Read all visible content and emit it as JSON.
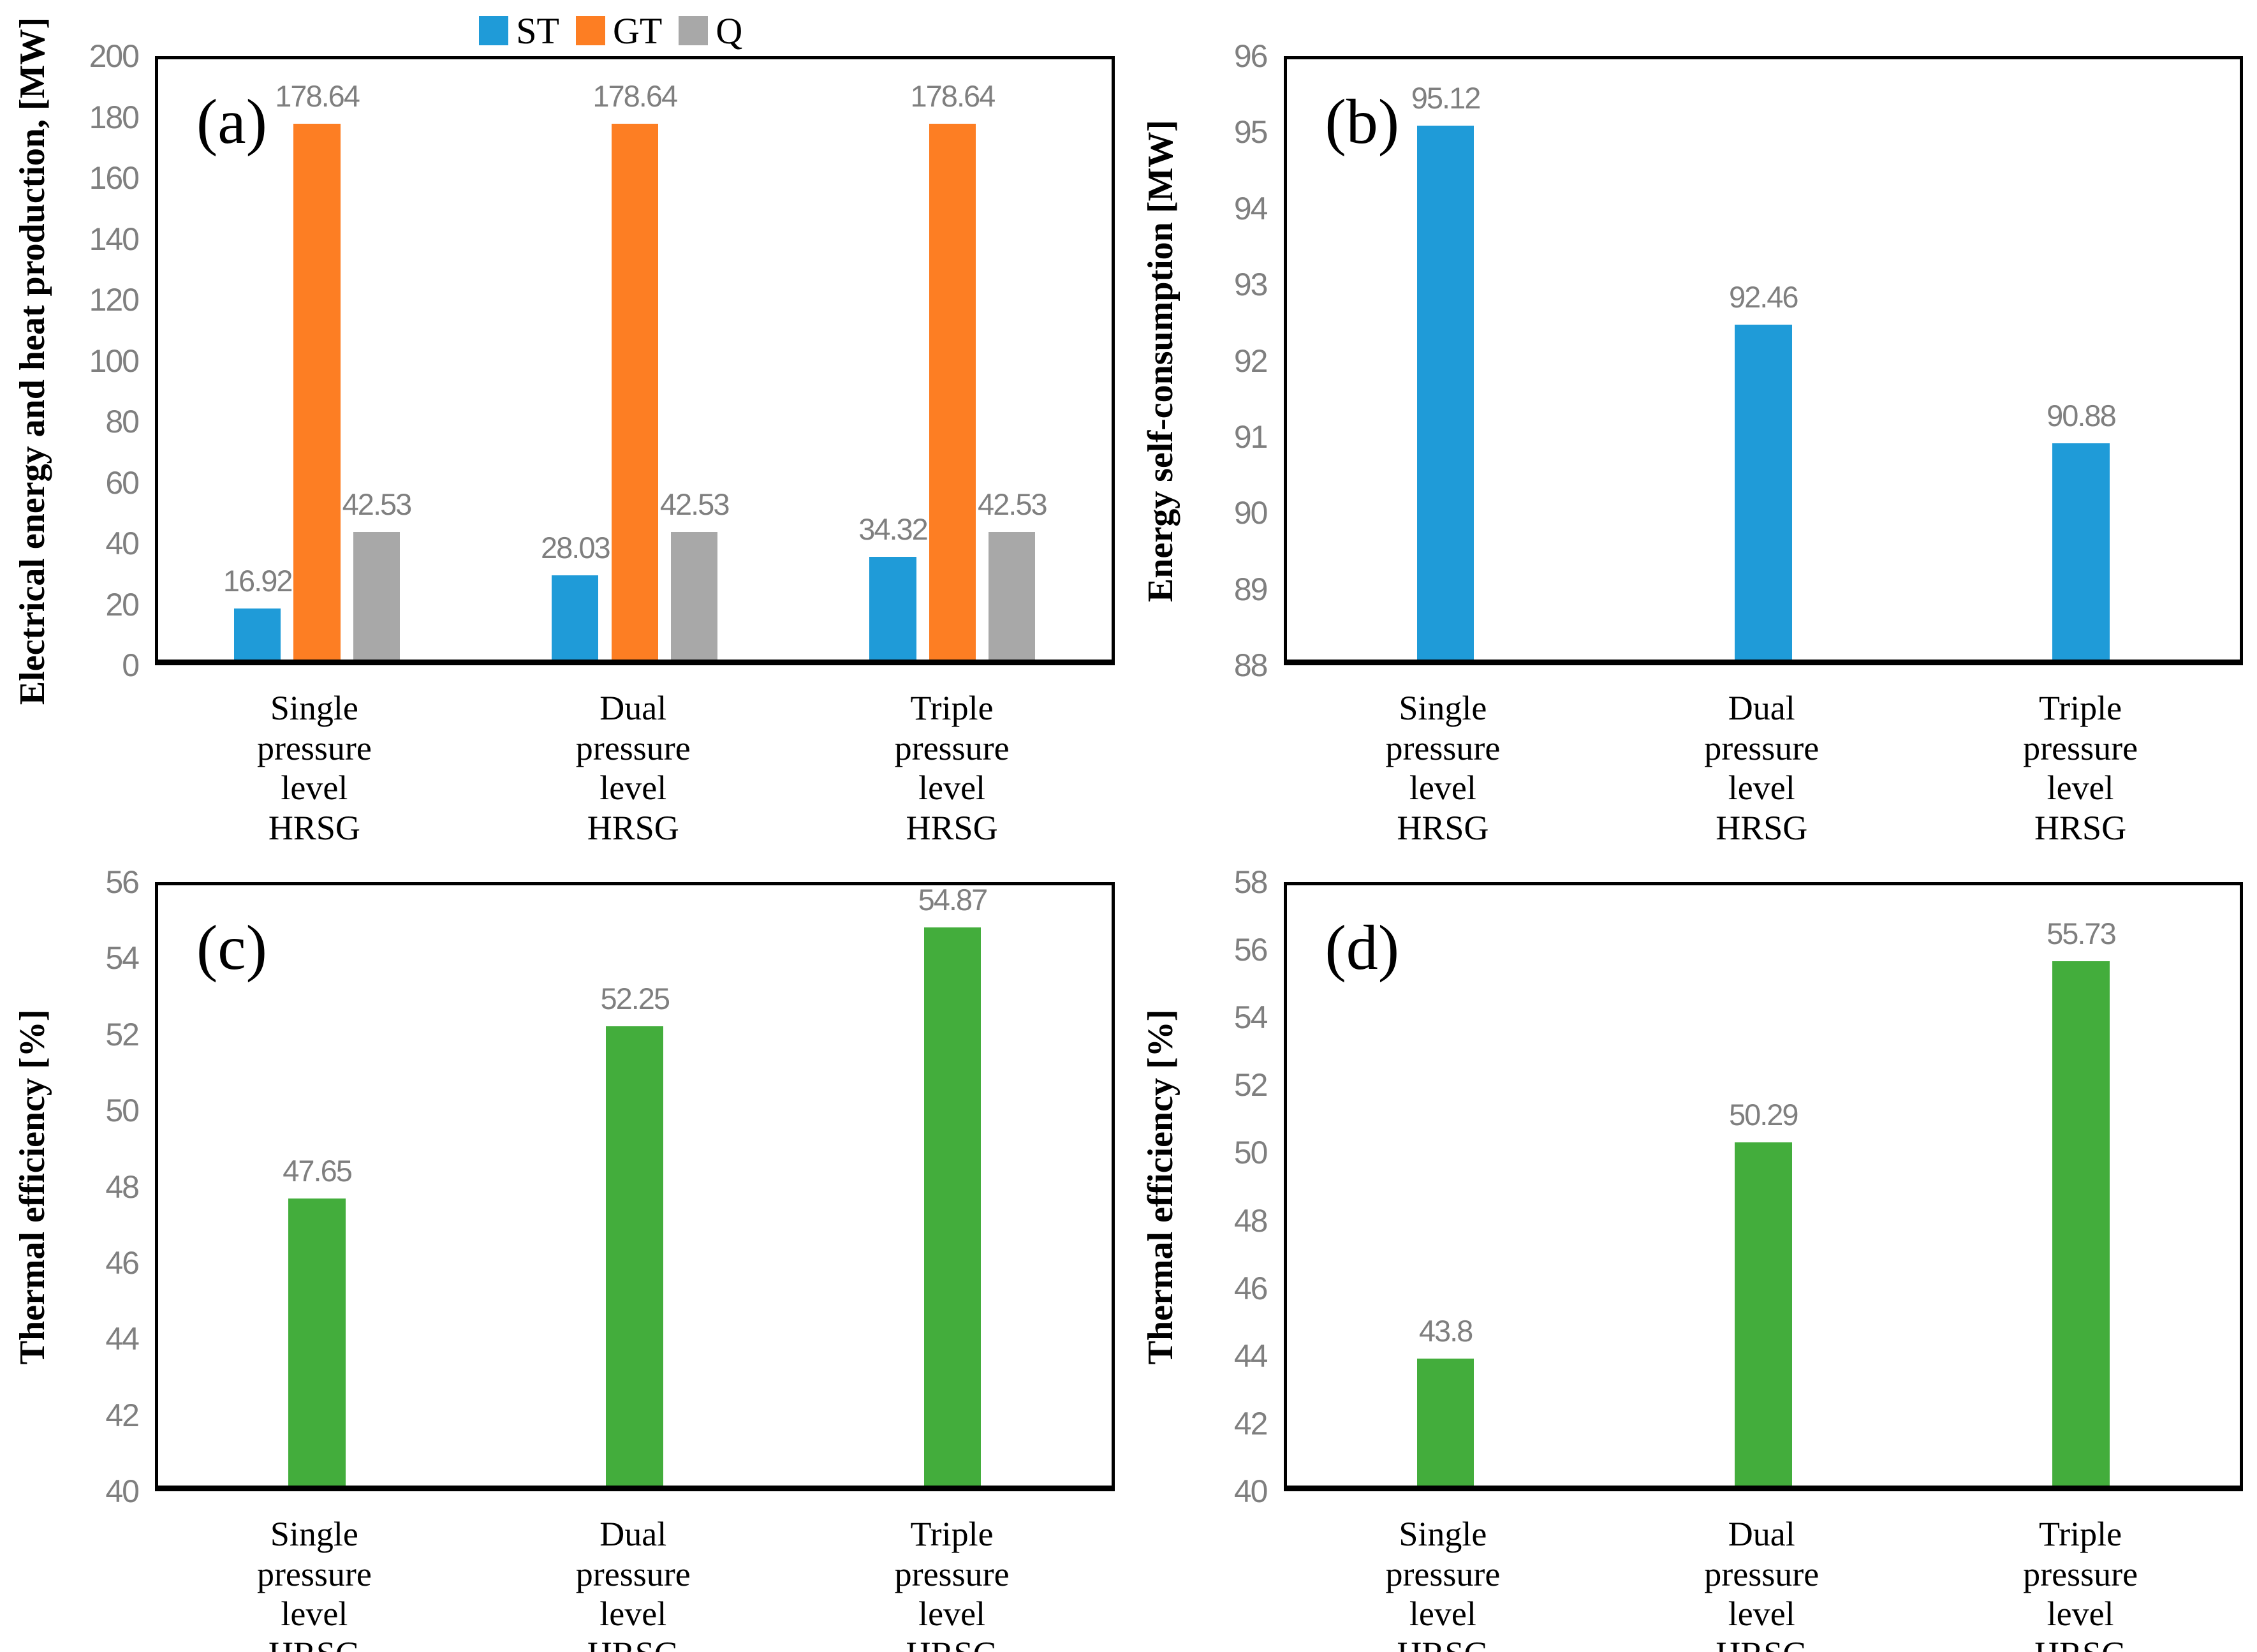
{
  "chart_data": [
    {
      "panel": "a",
      "type": "bar",
      "title": "(a)",
      "ylabel": "Electrical energy and heat production, [MW]",
      "ylim": [
        0,
        200
      ],
      "ystep": 20,
      "yticks": [
        "200",
        "180",
        "160",
        "140",
        "120",
        "100",
        "80",
        "60",
        "40",
        "20",
        "0"
      ],
      "grid": false,
      "legend_position": "top",
      "legend_show": true,
      "categories": [
        "Single pressure level HRSG",
        "Dual pressure level HRSG",
        "Triple pressure level HRSG"
      ],
      "series": [
        {
          "name": "ST",
          "color": "#1F9BD8",
          "values": [
            16.92,
            28.03,
            34.32
          ],
          "labels": [
            "16.92",
            "28.03",
            "34.32"
          ]
        },
        {
          "name": "GT",
          "color": "#FD7E23",
          "values": [
            178.64,
            178.64,
            178.64
          ],
          "labels": [
            "178.64",
            "178.64",
            "178.64"
          ]
        },
        {
          "name": "Q",
          "color": "#A8A8A8",
          "values": [
            42.53,
            42.53,
            42.53
          ],
          "labels": [
            "42.53",
            "42.53",
            "42.53"
          ]
        }
      ]
    },
    {
      "panel": "b",
      "type": "bar",
      "title": "(b)",
      "ylabel": "Energy self-consumption [MW]",
      "ylim": [
        88,
        96
      ],
      "ystep": 1,
      "yticks": [
        "96",
        "95",
        "94",
        "93",
        "92",
        "91",
        "90",
        "89",
        "88"
      ],
      "grid": false,
      "legend_show": false,
      "categories": [
        "Single pressure level HRSG",
        "Dual pressure level HRSG",
        "Triple pressure level HRSG"
      ],
      "series": [
        {
          "name": "Energy self-consumption",
          "color": "#1F9BD8",
          "values": [
            95.12,
            92.46,
            90.88
          ],
          "labels": [
            "95.12",
            "92.46",
            "90.88"
          ]
        }
      ]
    },
    {
      "panel": "c",
      "type": "bar",
      "title": "(c)",
      "ylabel": "Thermal efficiency [%]",
      "ylim": [
        40,
        56
      ],
      "ystep": 2,
      "yticks": [
        "56",
        "54",
        "52",
        "50",
        "48",
        "46",
        "44",
        "42",
        "40"
      ],
      "grid": false,
      "legend_show": false,
      "categories": [
        "Single pressure level HRSG",
        "Dual pressure level HRSG",
        "Triple pressure level HRSG"
      ],
      "series": [
        {
          "name": "Thermal efficiency",
          "color": "#43AD3C",
          "values": [
            47.65,
            52.25,
            54.87
          ],
          "labels": [
            "47.65",
            "52.25",
            "54.87"
          ]
        }
      ]
    },
    {
      "panel": "d",
      "type": "bar",
      "title": "(d)",
      "ylabel": "Thermal efficiency [%]",
      "ylim": [
        40,
        58
      ],
      "ystep": 2,
      "yticks": [
        "58",
        "56",
        "54",
        "52",
        "50",
        "48",
        "46",
        "44",
        "42",
        "40"
      ],
      "grid": false,
      "legend_show": false,
      "categories": [
        "Single pressure level HRSG",
        "Dual pressure level HRSG",
        "Triple pressure level HRSG"
      ],
      "series": [
        {
          "name": "Thermal efficiency",
          "color": "#43AD3C",
          "values": [
            43.8,
            50.29,
            55.73
          ],
          "labels": [
            "43.8",
            "50.29",
            "55.73"
          ]
        }
      ]
    }
  ],
  "colors": {
    "st_blue": "#1F9BD8",
    "gt_orange": "#FD7E23",
    "q_gray": "#A8A8A8",
    "efficiency_green": "#43AD3C",
    "tick_gray": "#7F7F7F",
    "axis_black": "#000000"
  }
}
